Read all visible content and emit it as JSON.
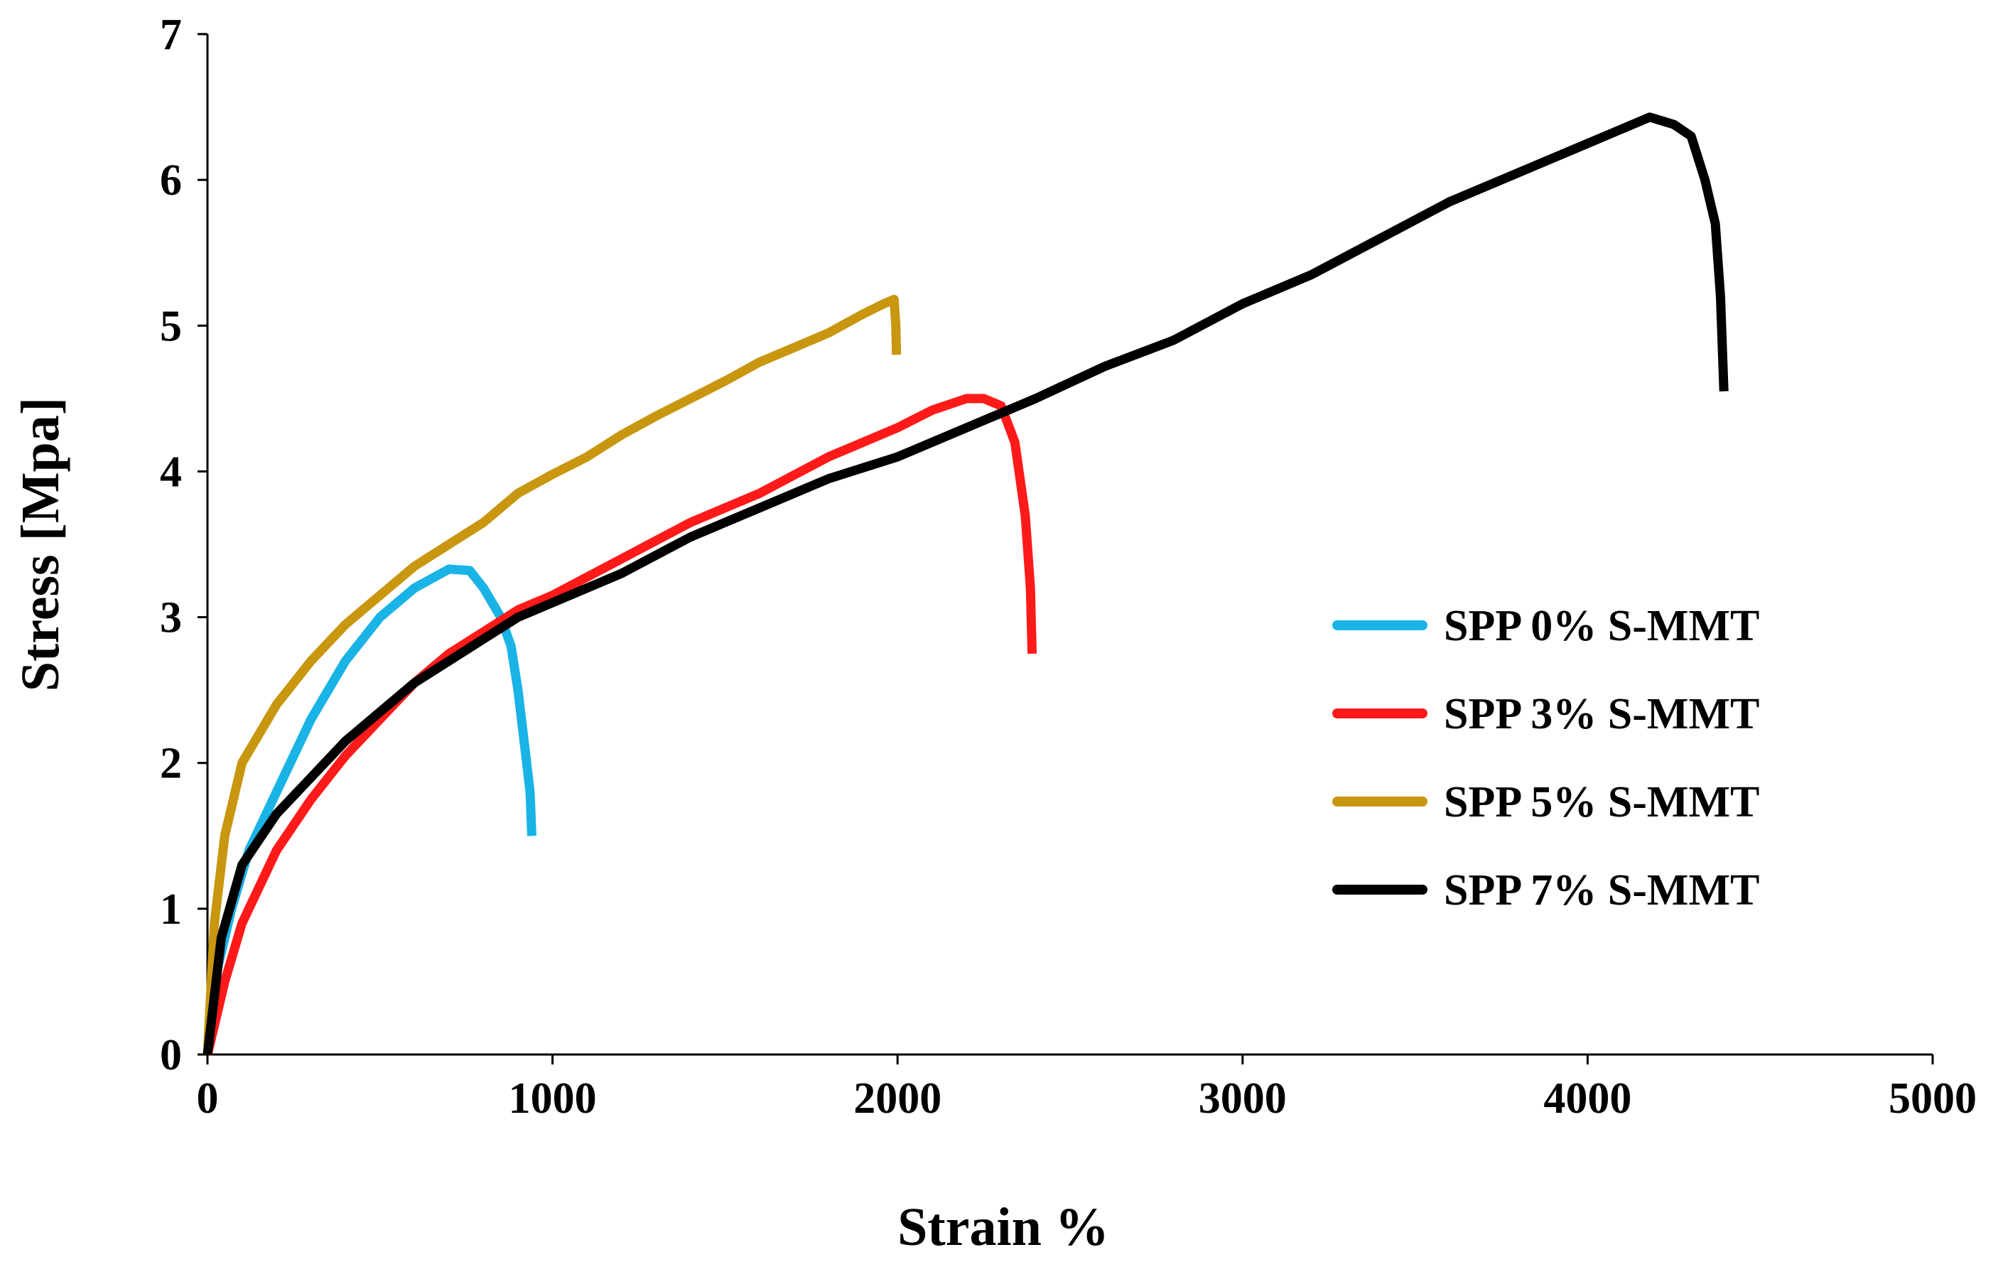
{
  "chart_data": {
    "type": "line",
    "title": "",
    "xlabel": "Strain %",
    "ylabel": "Stress [Mpa]",
    "xlim": [
      0,
      5000
    ],
    "ylim": [
      0,
      7
    ],
    "x_ticks": [
      0,
      1000,
      2000,
      3000,
      4000,
      5000
    ],
    "y_ticks": [
      0,
      1,
      2,
      3,
      4,
      5,
      6,
      7
    ],
    "grid": false,
    "legend_position": "right-center",
    "series": [
      {
        "name": "SPP 0% S-MMT",
        "color": "#19b3e6",
        "points": [
          [
            0,
            0
          ],
          [
            30,
            0.6
          ],
          [
            70,
            1.0
          ],
          [
            120,
            1.4
          ],
          [
            200,
            1.8
          ],
          [
            300,
            2.3
          ],
          [
            400,
            2.7
          ],
          [
            500,
            3.0
          ],
          [
            600,
            3.2
          ],
          [
            700,
            3.33
          ],
          [
            760,
            3.32
          ],
          [
            800,
            3.2
          ],
          [
            850,
            3.0
          ],
          [
            880,
            2.8
          ],
          [
            900,
            2.5
          ],
          [
            920,
            2.1
          ],
          [
            935,
            1.8
          ],
          [
            940,
            1.5
          ]
        ]
      },
      {
        "name": "SPP 3% S-MMT",
        "color": "#ff1a1a",
        "points": [
          [
            0,
            0
          ],
          [
            50,
            0.5
          ],
          [
            100,
            0.9
          ],
          [
            200,
            1.4
          ],
          [
            300,
            1.75
          ],
          [
            400,
            2.05
          ],
          [
            500,
            2.3
          ],
          [
            600,
            2.55
          ],
          [
            700,
            2.75
          ],
          [
            800,
            2.9
          ],
          [
            900,
            3.05
          ],
          [
            1000,
            3.15
          ],
          [
            1200,
            3.4
          ],
          [
            1400,
            3.65
          ],
          [
            1600,
            3.85
          ],
          [
            1800,
            4.1
          ],
          [
            2000,
            4.3
          ],
          [
            2100,
            4.42
          ],
          [
            2200,
            4.5
          ],
          [
            2250,
            4.5
          ],
          [
            2300,
            4.45
          ],
          [
            2340,
            4.2
          ],
          [
            2370,
            3.7
          ],
          [
            2385,
            3.2
          ],
          [
            2390,
            2.75
          ]
        ]
      },
      {
        "name": "SPP 5% S-MMT",
        "color": "#c8960f",
        "points": [
          [
            0,
            0
          ],
          [
            20,
            0.9
          ],
          [
            50,
            1.5
          ],
          [
            100,
            2.0
          ],
          [
            200,
            2.4
          ],
          [
            300,
            2.7
          ],
          [
            400,
            2.95
          ],
          [
            500,
            3.15
          ],
          [
            600,
            3.35
          ],
          [
            700,
            3.5
          ],
          [
            800,
            3.65
          ],
          [
            900,
            3.85
          ],
          [
            1000,
            3.98
          ],
          [
            1100,
            4.1
          ],
          [
            1200,
            4.25
          ],
          [
            1300,
            4.38
          ],
          [
            1400,
            4.5
          ],
          [
            1500,
            4.62
          ],
          [
            1600,
            4.75
          ],
          [
            1700,
            4.85
          ],
          [
            1800,
            4.95
          ],
          [
            1900,
            5.08
          ],
          [
            1960,
            5.15
          ],
          [
            1990,
            5.18
          ],
          [
            1995,
            5.0
          ],
          [
            1997,
            4.8
          ]
        ]
      },
      {
        "name": "SPP 7% S-MMT",
        "color": "#000000",
        "points": [
          [
            0,
            0
          ],
          [
            40,
            0.8
          ],
          [
            100,
            1.3
          ],
          [
            200,
            1.65
          ],
          [
            300,
            1.9
          ],
          [
            400,
            2.15
          ],
          [
            500,
            2.35
          ],
          [
            600,
            2.55
          ],
          [
            700,
            2.7
          ],
          [
            800,
            2.85
          ],
          [
            900,
            3.0
          ],
          [
            1000,
            3.1
          ],
          [
            1200,
            3.3
          ],
          [
            1400,
            3.55
          ],
          [
            1600,
            3.75
          ],
          [
            1800,
            3.95
          ],
          [
            2000,
            4.1
          ],
          [
            2200,
            4.3
          ],
          [
            2400,
            4.5
          ],
          [
            2600,
            4.72
          ],
          [
            2800,
            4.9
          ],
          [
            3000,
            5.15
          ],
          [
            3200,
            5.35
          ],
          [
            3400,
            5.6
          ],
          [
            3600,
            5.85
          ],
          [
            3800,
            6.05
          ],
          [
            4000,
            6.25
          ],
          [
            4100,
            6.35
          ],
          [
            4180,
            6.43
          ],
          [
            4250,
            6.38
          ],
          [
            4300,
            6.3
          ],
          [
            4340,
            6.0
          ],
          [
            4370,
            5.7
          ],
          [
            4385,
            5.2
          ],
          [
            4395,
            4.55
          ]
        ]
      }
    ]
  }
}
